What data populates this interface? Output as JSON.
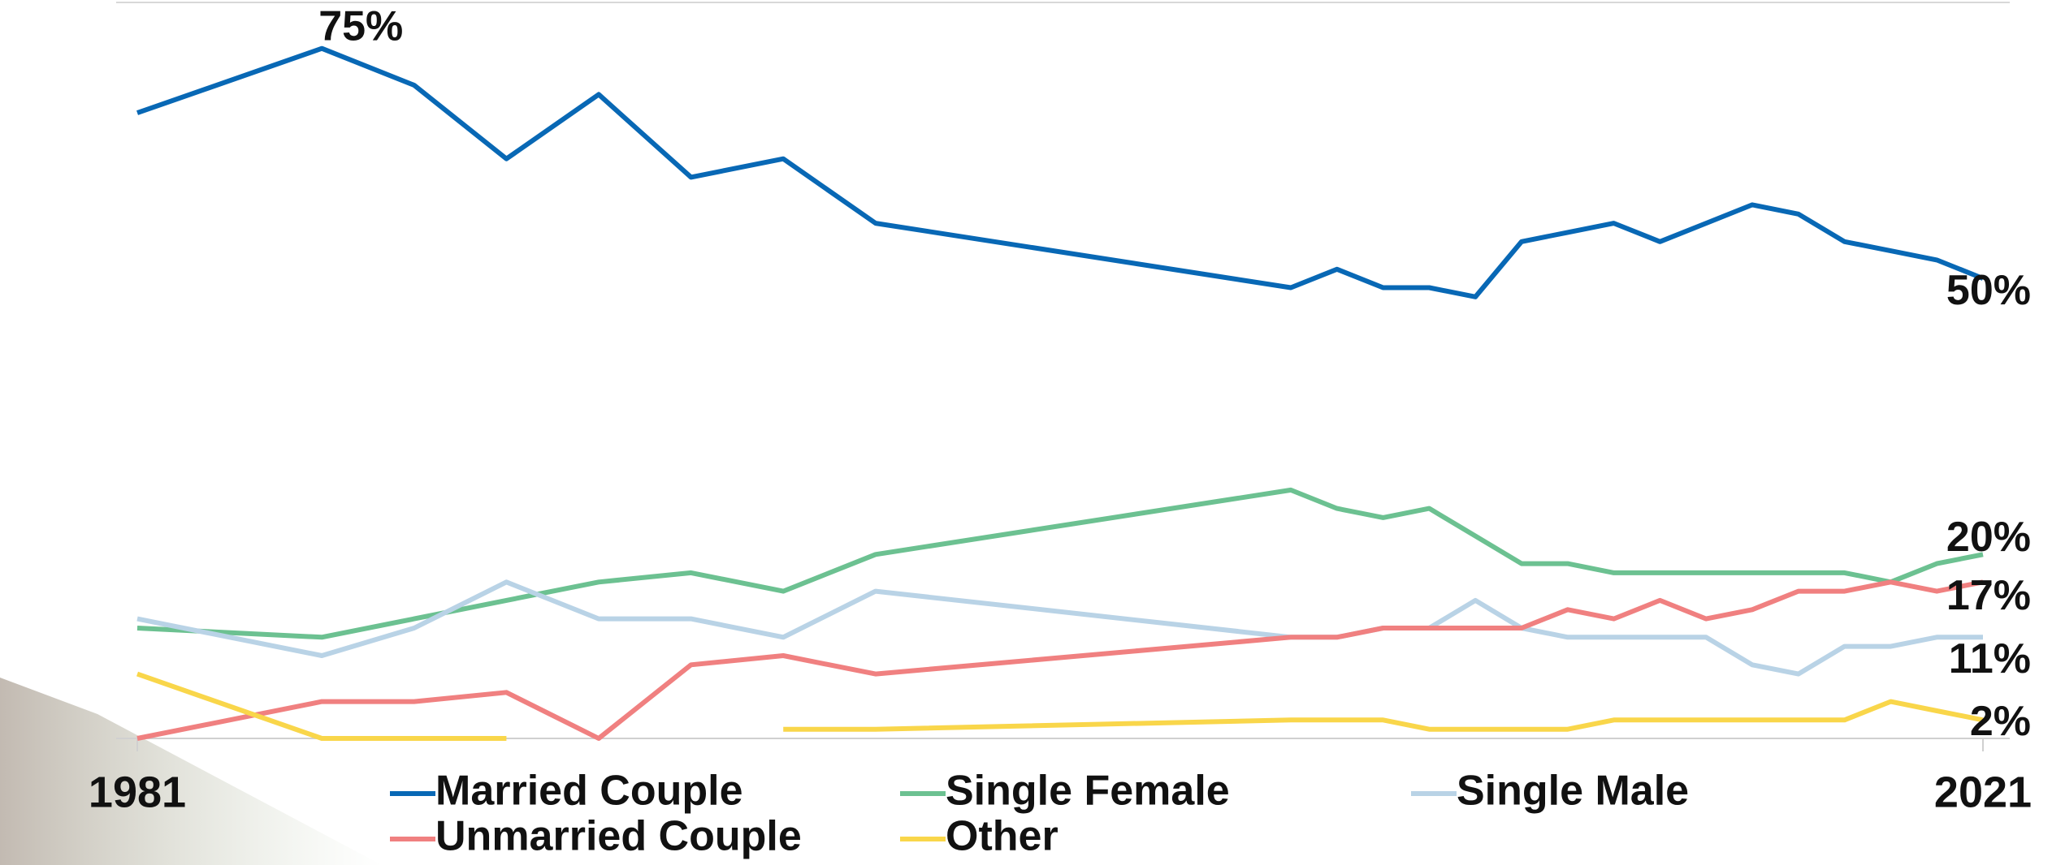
{
  "chart_data": {
    "type": "line",
    "x": [
      1981,
      1985,
      1987,
      1989,
      1991,
      1993,
      1995,
      1997,
      2006,
      2007,
      2008,
      2009,
      2010,
      2011,
      2012,
      2013,
      2014,
      2015,
      2016,
      2017,
      2018,
      2019,
      2020,
      2021
    ],
    "xlim": [
      1981,
      2021
    ],
    "xticks": [
      1981,
      2021
    ],
    "ylim": [
      0,
      80
    ],
    "series": [
      {
        "name": "Married Couple",
        "color": "#0868b5",
        "values": [
          68,
          75,
          71,
          63,
          70,
          61,
          63,
          56,
          49,
          51,
          49,
          49,
          48,
          54,
          55,
          56,
          54,
          56,
          58,
          57,
          54,
          53,
          52,
          50
        ],
        "value_labels": [
          null,
          "75%",
          null,
          null,
          null,
          null,
          null,
          null,
          null,
          null,
          null,
          null,
          null,
          null,
          null,
          null,
          null,
          null,
          null,
          null,
          null,
          null,
          null,
          "50%"
        ]
      },
      {
        "name": "Single Female",
        "color": "#6cc191",
        "values": [
          12,
          11,
          13,
          15,
          17,
          18,
          16,
          20,
          27,
          25,
          24,
          25,
          22,
          19,
          19,
          18,
          18,
          18,
          18,
          18,
          18,
          17,
          19,
          20
        ],
        "value_labels": [
          null,
          null,
          null,
          null,
          null,
          null,
          null,
          null,
          null,
          null,
          null,
          null,
          null,
          null,
          null,
          null,
          null,
          null,
          null,
          null,
          null,
          null,
          null,
          "20%"
        ]
      },
      {
        "name": "Single Male",
        "color": "#b9d3e6",
        "values": [
          13,
          9,
          12,
          17,
          13,
          13,
          11,
          16,
          11,
          11,
          12,
          12,
          15,
          12,
          11,
          11,
          11,
          11,
          8,
          7,
          10,
          10,
          11,
          11
        ],
        "value_labels": [
          null,
          null,
          null,
          null,
          null,
          null,
          null,
          null,
          null,
          null,
          null,
          null,
          null,
          null,
          null,
          null,
          null,
          null,
          null,
          null,
          null,
          null,
          null,
          "11%"
        ]
      },
      {
        "name": "Unmarried Couple",
        "color": "#f08080",
        "values": [
          0,
          4,
          4,
          5,
          0,
          8,
          9,
          7,
          11,
          11,
          12,
          12,
          12,
          12,
          14,
          13,
          15,
          13,
          14,
          16,
          16,
          17,
          16,
          17
        ],
        "value_labels": [
          null,
          null,
          null,
          null,
          null,
          null,
          null,
          null,
          null,
          null,
          null,
          null,
          null,
          null,
          null,
          null,
          null,
          null,
          null,
          null,
          null,
          null,
          null,
          "17%"
        ]
      },
      {
        "name": "Other",
        "color": "#f9d64a",
        "values": [
          7,
          0,
          0,
          0,
          null,
          null,
          1,
          1,
          2,
          2,
          2,
          1,
          1,
          1,
          1,
          2,
          2,
          2,
          2,
          2,
          2,
          4,
          3,
          2
        ],
        "value_labels": [
          null,
          null,
          null,
          null,
          null,
          null,
          null,
          null,
          null,
          null,
          null,
          null,
          null,
          null,
          null,
          null,
          null,
          null,
          null,
          null,
          null,
          null,
          null,
          "2%"
        ]
      }
    ]
  }
}
